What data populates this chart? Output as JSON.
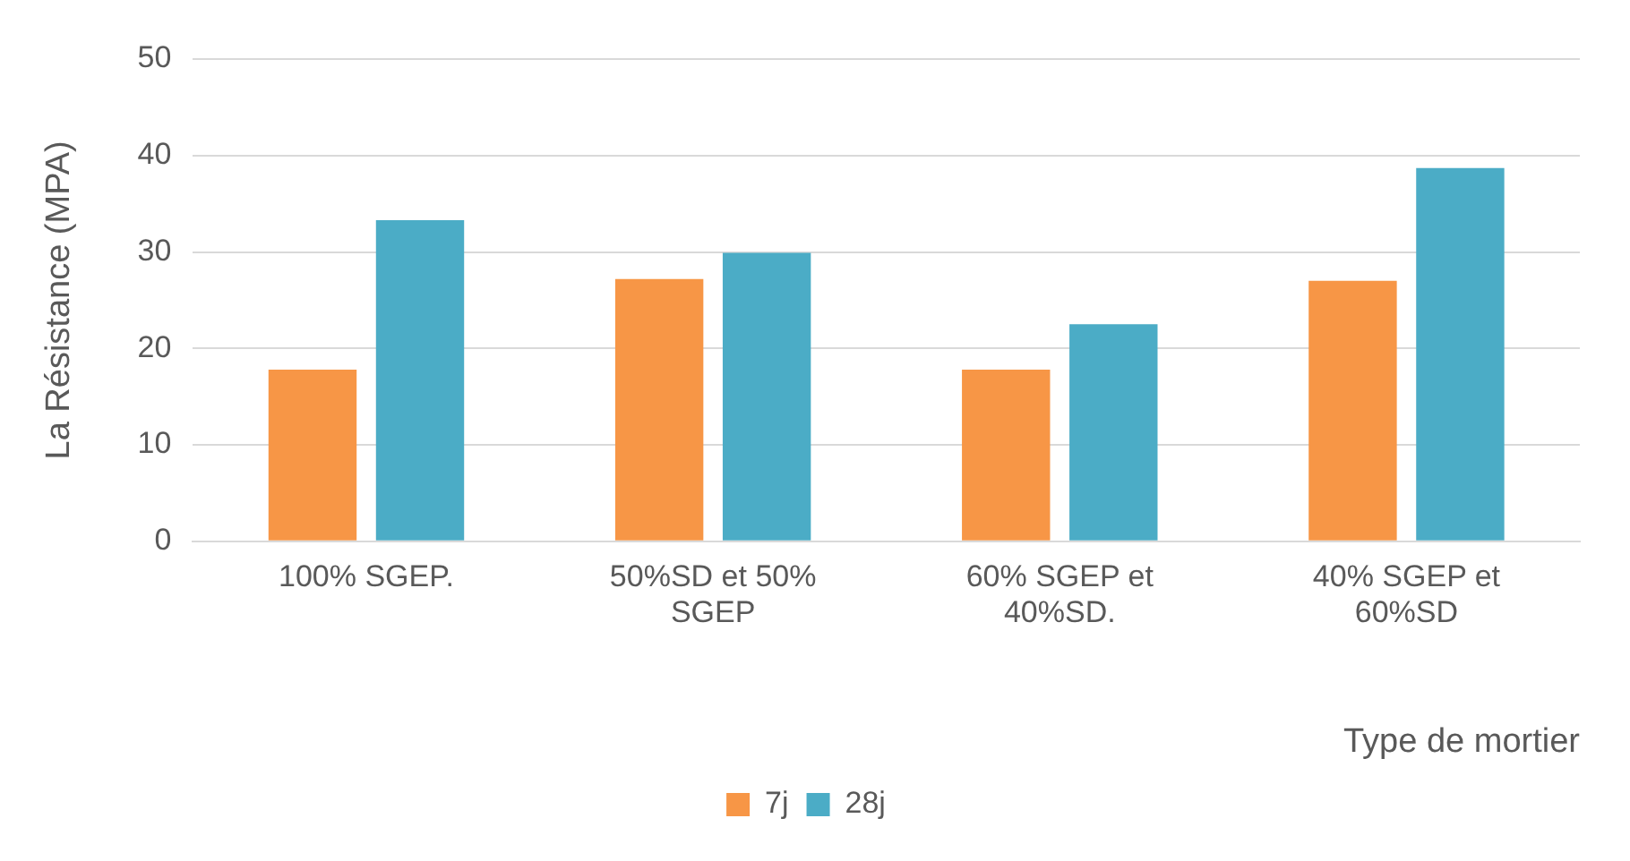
{
  "chart_data": {
    "type": "bar",
    "ylabel": "La Résistance (MPA)",
    "xlabel": "Type de mortier",
    "categories": [
      "100% SGEP.",
      "50%SD et 50% SGEP",
      "60% SGEP et 40%SD.",
      "40% SGEP et 60%SD"
    ],
    "series": [
      {
        "name": "7j",
        "color": "#f79646",
        "values": [
          17.8,
          27.2,
          17.8,
          27.0
        ]
      },
      {
        "name": "28j",
        "color": "#4bacc6",
        "values": [
          33.3,
          29.9,
          22.5,
          38.7
        ]
      }
    ],
    "ylim": [
      0,
      50
    ],
    "yticks": [
      0,
      10,
      20,
      30,
      40,
      50
    ],
    "grid": "y",
    "legend": "bottom"
  }
}
